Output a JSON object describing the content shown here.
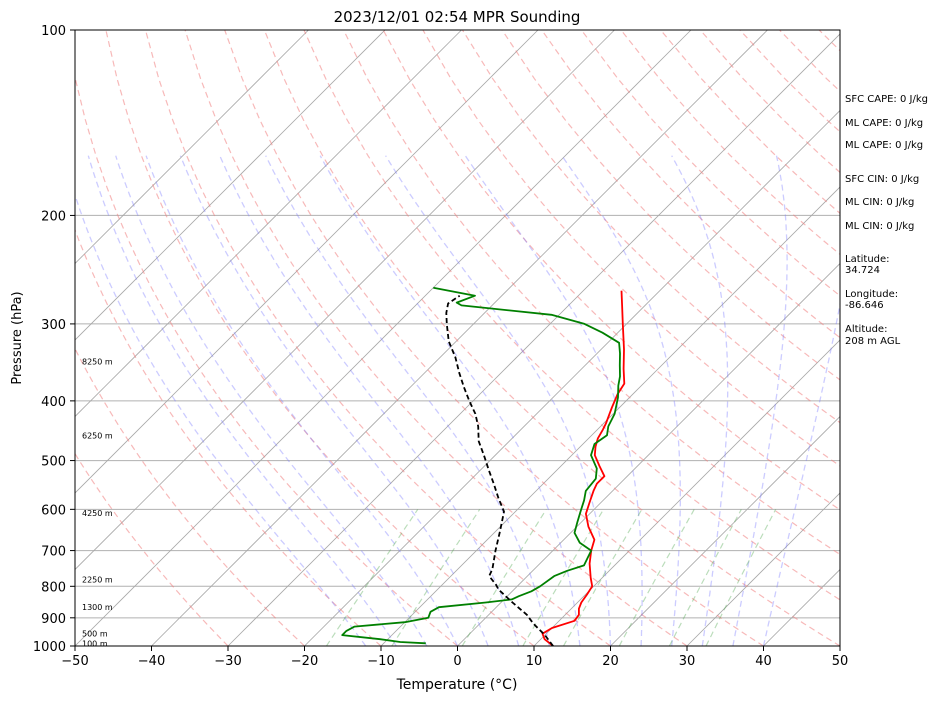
{
  "chart_data": {
    "type": "line",
    "title": "2023/12/01 02:54 MPR Sounding",
    "xlabel": "Temperature (°C)",
    "ylabel": "Pressure (hPa)",
    "xlim": [
      -50,
      50
    ],
    "ylim": [
      1000,
      100
    ],
    "y_scale": "log",
    "x_ticks": [
      -50,
      -40,
      -30,
      -20,
      -10,
      0,
      10,
      20,
      30,
      40,
      50
    ],
    "x_tick_labels": [
      "−50",
      "−40",
      "−30",
      "−20",
      "−10",
      "0",
      "10",
      "20",
      "30",
      "40",
      "50"
    ],
    "y_ticks": [
      1000,
      900,
      800,
      700,
      600,
      500,
      400,
      300,
      200,
      100
    ],
    "y_tick_labels": [
      "1000",
      "900",
      "800",
      "700",
      "600",
      "500",
      "400",
      "300",
      "200",
      "100"
    ],
    "height_labels": [
      {
        "p": 990,
        "text": "100 m"
      },
      {
        "p": 955,
        "text": "500 m"
      },
      {
        "p": 865,
        "text": "1300 m"
      },
      {
        "p": 780,
        "text": "2250 m"
      },
      {
        "p": 608,
        "text": "4250 m"
      },
      {
        "p": 455,
        "text": "6250 m"
      },
      {
        "p": 345,
        "text": "8250 m"
      }
    ],
    "series": [
      {
        "color": "#ff0000",
        "points": [
          [
            12.5,
            1000
          ],
          [
            10.5,
            975
          ],
          [
            9.5,
            955
          ],
          [
            10.0,
            935
          ],
          [
            12.0,
            910
          ],
          [
            11.8,
            890
          ],
          [
            11.0,
            870
          ],
          [
            10.5,
            850
          ],
          [
            10.2,
            825
          ],
          [
            9.8,
            800
          ],
          [
            8.5,
            775
          ],
          [
            6.5,
            735
          ],
          [
            5.0,
            700
          ],
          [
            4.0,
            672
          ],
          [
            1.5,
            640
          ],
          [
            -0.5,
            610
          ],
          [
            -1.5,
            585
          ],
          [
            -2.5,
            560
          ],
          [
            -3.0,
            545
          ],
          [
            -3.0,
            530
          ],
          [
            -5.0,
            510
          ],
          [
            -7.0,
            490
          ],
          [
            -8.0,
            475
          ],
          [
            -8.8,
            460
          ],
          [
            -9.3,
            445
          ],
          [
            -9.7,
            435
          ],
          [
            -11.0,
            410
          ],
          [
            -12.0,
            390
          ],
          [
            -12.5,
            375
          ],
          [
            -14.5,
            355
          ],
          [
            -17.0,
            330
          ],
          [
            -20.5,
            300
          ],
          [
            -23.0,
            280
          ],
          [
            -25.0,
            265
          ]
        ]
      },
      {
        "color": "#008000",
        "points": [
          [
            -4.5,
            990
          ],
          [
            -8.0,
            985
          ],
          [
            -11.0,
            975
          ],
          [
            -16.5,
            960
          ],
          [
            -16.5,
            945
          ],
          [
            -16.0,
            930
          ],
          [
            -10.0,
            915
          ],
          [
            -7.5,
            900
          ],
          [
            -8.0,
            880
          ],
          [
            -7.5,
            865
          ],
          [
            -2.0,
            850
          ],
          [
            1.0,
            840
          ],
          [
            1.5,
            830
          ],
          [
            2.5,
            815
          ],
          [
            3.0,
            800
          ],
          [
            3.5,
            770
          ],
          [
            4.5,
            755
          ],
          [
            6.0,
            740
          ],
          [
            5.5,
            720
          ],
          [
            5.0,
            700
          ],
          [
            2.5,
            680
          ],
          [
            0.5,
            655
          ],
          [
            -0.5,
            630
          ],
          [
            -1.5,
            605
          ],
          [
            -2.5,
            580
          ],
          [
            -3.5,
            560
          ],
          [
            -3.8,
            535
          ],
          [
            -5.0,
            515
          ],
          [
            -7.5,
            490
          ],
          [
            -8.5,
            470
          ],
          [
            -8.0,
            455
          ],
          [
            -9.0,
            440
          ],
          [
            -9.8,
            420
          ],
          [
            -11.5,
            395
          ],
          [
            -13.0,
            378
          ],
          [
            -14.0,
            365
          ],
          [
            -15.5,
            350
          ],
          [
            -17.0,
            335
          ],
          [
            -18.5,
            322
          ],
          [
            -22.0,
            310
          ],
          [
            -25.5,
            300
          ],
          [
            -31.0,
            290
          ],
          [
            -44.0,
            280
          ],
          [
            -45.0,
            277
          ],
          [
            -43.5,
            270
          ],
          [
            -50.0,
            262
          ]
        ]
      },
      {
        "color": "#000000",
        "dashed": true,
        "points": [
          [
            12.5,
            1000
          ],
          [
            10.0,
            960
          ],
          [
            7.0,
            920
          ],
          [
            5.0,
            890
          ],
          [
            1.5,
            850
          ],
          [
            -2.0,
            810
          ],
          [
            -3.0,
            795
          ],
          [
            -5.0,
            770
          ],
          [
            -5.5,
            750
          ],
          [
            -7.5,
            700
          ],
          [
            -9.5,
            650
          ],
          [
            -11.5,
            605
          ],
          [
            -14.0,
            575
          ],
          [
            -16.5,
            545
          ],
          [
            -19.0,
            517
          ],
          [
            -21.5,
            490
          ],
          [
            -24.0,
            465
          ],
          [
            -26.0,
            440
          ],
          [
            -28.0,
            420
          ],
          [
            -30.5,
            400
          ],
          [
            -33.0,
            380
          ],
          [
            -35.5,
            360
          ],
          [
            -38.0,
            340
          ],
          [
            -41.0,
            320
          ],
          [
            -43.5,
            300
          ],
          [
            -45.0,
            288
          ],
          [
            -46.0,
            278
          ],
          [
            -45.5,
            270
          ]
        ]
      }
    ]
  },
  "side_info": {
    "sfc_cape": "SFC CAPE: 0 J/kg",
    "ml_cape_1": "ML CAPE: 0 J/kg",
    "ml_cape_2": "ML CAPE: 0 J/kg",
    "sfc_cin": "SFC CIN: 0 J/kg",
    "ml_cin_1": "ML CIN: 0 J/kg",
    "ml_cin_2": "ML CIN: 0 J/kg",
    "latitude_label": "Latitude:",
    "latitude_value": "34.724",
    "longitude_label": "Longitude:",
    "longitude_value": "-86.646",
    "altitude_label": "Altitude:",
    "altitude_value": "208 m AGL"
  }
}
